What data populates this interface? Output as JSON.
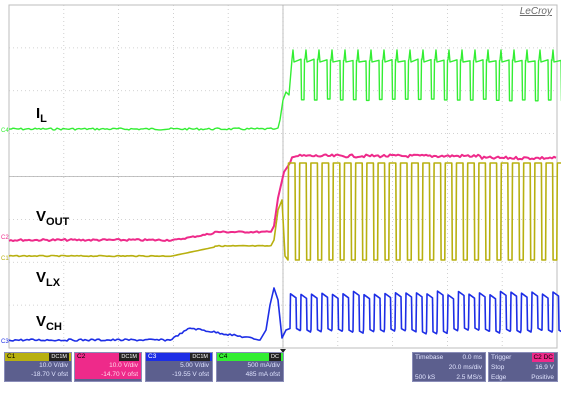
{
  "brand": "LeCroy",
  "colors": {
    "il": "#33ee33",
    "vout": "#ee2a8a",
    "vlx": "#b8b010",
    "vch": "#1d2ee6",
    "grid": "#c4c4c4",
    "panel": "#5c5f8e"
  },
  "traces": {
    "il": {
      "name": "I",
      "sub": "L",
      "level_marker": "C4"
    },
    "vout": {
      "name": "V",
      "sub": "OUT",
      "level_marker": "C2"
    },
    "vlx": {
      "name": "V",
      "sub": "LX",
      "level_marker": "C1"
    },
    "vch": {
      "name": "V",
      "sub": "CH",
      "level_marker": "C3"
    }
  },
  "channels": [
    {
      "id": "C1",
      "coupling": "DC1M",
      "vdiv": "10.0 V/div",
      "offset": "-18.70 V ofst",
      "color": "#b8b010"
    },
    {
      "id": "C2",
      "coupling": "DC1M",
      "vdiv": "10.0 V/div",
      "offset": "-14.70 V ofst",
      "color": "#ee2a8a"
    },
    {
      "id": "C3",
      "coupling": "DC1M",
      "vdiv": "5.00 V/div",
      "offset": "-19.55 V ofst",
      "color": "#1d2ee6"
    },
    {
      "id": "C4",
      "coupling": "DC",
      "vdiv": "500 mA/div",
      "offset": "485 mA ofst",
      "color": "#33ee33"
    }
  ],
  "timebase": {
    "label": "Timebase",
    "delay": "0.0 ms",
    "per_div": "20.0 ms/div",
    "samples": "500 kS",
    "rate": "2.5 MS/s"
  },
  "trigger": {
    "label": "Trigger",
    "source": "C2 DC",
    "mode": "Stop",
    "level": "16.9 V",
    "type": "Edge",
    "slope": "Positive"
  }
}
